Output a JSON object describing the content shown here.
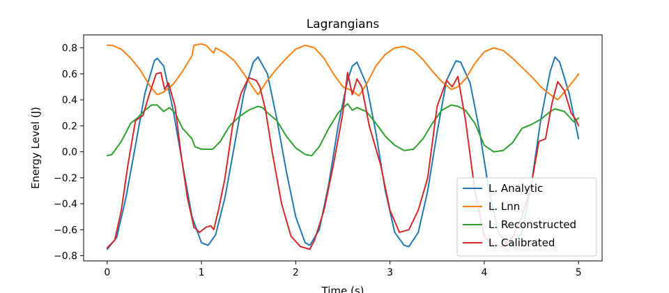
{
  "chart_data": {
    "type": "line",
    "title": "Lagrangians",
    "xlabel": "Time (s)",
    "ylabel": "Energy Level (J)",
    "xlim": [
      -0.25,
      5.25
    ],
    "ylim": [
      -0.84,
      0.9
    ],
    "xticks": [
      0,
      1,
      2,
      3,
      4,
      5
    ],
    "xtick_labels": [
      "0",
      "1",
      "2",
      "3",
      "4",
      "5"
    ],
    "yticks": [
      -0.8,
      -0.6,
      -0.4,
      -0.2,
      0.0,
      0.2,
      0.4,
      0.6,
      0.8
    ],
    "ytick_labels": [
      "−0.8",
      "−0.6",
      "−0.4",
      "−0.2",
      "0.0",
      "0.2",
      "0.4",
      "0.6",
      "0.8"
    ],
    "grid": false,
    "legend_position": "bottom-right",
    "series": [
      {
        "name": "L. Analytic",
        "color": "#1f77b4",
        "x": [
          0,
          0.1,
          0.2,
          0.3,
          0.4,
          0.5,
          0.53,
          0.6,
          0.7,
          0.8,
          0.9,
          1.0,
          1.07,
          1.15,
          1.25,
          1.35,
          1.45,
          1.55,
          1.6,
          1.7,
          1.8,
          1.9,
          2.0,
          2.1,
          2.15,
          2.25,
          2.35,
          2.45,
          2.55,
          2.6,
          2.65,
          2.75,
          2.85,
          2.95,
          3.05,
          3.15,
          3.2,
          3.3,
          3.4,
          3.5,
          3.6,
          3.7,
          3.75,
          3.85,
          3.95,
          4.05,
          4.15,
          4.25,
          4.3,
          4.4,
          4.5,
          4.6,
          4.7,
          4.75,
          4.8,
          4.9,
          5.0
        ],
        "y": [
          -0.75,
          -0.66,
          -0.35,
          0.05,
          0.45,
          0.7,
          0.72,
          0.66,
          0.32,
          -0.1,
          -0.5,
          -0.7,
          -0.72,
          -0.64,
          -0.35,
          0.05,
          0.45,
          0.69,
          0.73,
          0.6,
          0.25,
          -0.15,
          -0.5,
          -0.7,
          -0.72,
          -0.6,
          -0.25,
          0.2,
          0.55,
          0.66,
          0.69,
          0.52,
          0.15,
          -0.3,
          -0.62,
          -0.72,
          -0.73,
          -0.62,
          -0.3,
          0.15,
          0.55,
          0.7,
          0.69,
          0.53,
          0.16,
          -0.3,
          -0.62,
          -0.72,
          -0.73,
          -0.62,
          -0.25,
          0.25,
          0.62,
          0.73,
          0.69,
          0.45,
          0.1
        ]
      },
      {
        "name": "L. Lnn",
        "color": "#ff7f0e",
        "x": [
          0,
          0.05,
          0.15,
          0.25,
          0.35,
          0.45,
          0.53,
          0.6,
          0.7,
          0.8,
          0.9,
          0.92,
          1.0,
          1.05,
          1.1,
          1.13,
          1.15,
          1.25,
          1.35,
          1.45,
          1.55,
          1.6,
          1.7,
          1.8,
          1.9,
          2.0,
          2.1,
          2.2,
          2.3,
          2.4,
          2.5,
          2.6,
          2.67,
          2.75,
          2.85,
          2.95,
          3.05,
          3.15,
          3.25,
          3.35,
          3.45,
          3.55,
          3.65,
          3.72,
          3.8,
          3.9,
          4.0,
          4.1,
          4.2,
          4.3,
          4.4,
          4.5,
          4.6,
          4.7,
          4.78,
          4.85,
          4.95,
          5.0
        ],
        "y": [
          0.82,
          0.82,
          0.79,
          0.72,
          0.63,
          0.51,
          0.44,
          0.46,
          0.52,
          0.62,
          0.74,
          0.82,
          0.83,
          0.82,
          0.78,
          0.76,
          0.8,
          0.76,
          0.7,
          0.6,
          0.49,
          0.44,
          0.55,
          0.64,
          0.72,
          0.79,
          0.82,
          0.8,
          0.72,
          0.6,
          0.5,
          0.47,
          0.43,
          0.52,
          0.66,
          0.75,
          0.8,
          0.81,
          0.78,
          0.71,
          0.62,
          0.54,
          0.48,
          0.5,
          0.56,
          0.68,
          0.77,
          0.8,
          0.78,
          0.72,
          0.65,
          0.58,
          0.5,
          0.44,
          0.4,
          0.46,
          0.55,
          0.6
        ]
      },
      {
        "name": "L. Reconstructed",
        "color": "#2ca02c",
        "x": [
          0,
          0.05,
          0.15,
          0.25,
          0.32,
          0.4,
          0.47,
          0.53,
          0.6,
          0.66,
          0.72,
          0.8,
          0.9,
          0.93,
          1.0,
          1.05,
          1.12,
          1.2,
          1.3,
          1.4,
          1.5,
          1.6,
          1.65,
          1.7,
          1.8,
          1.9,
          2.0,
          2.1,
          2.17,
          2.25,
          2.35,
          2.45,
          2.55,
          2.6,
          2.65,
          2.75,
          2.85,
          2.95,
          3.05,
          3.15,
          3.25,
          3.35,
          3.45,
          3.55,
          3.65,
          3.72,
          3.8,
          3.9,
          4.0,
          4.1,
          4.2,
          4.3,
          4.4,
          4.5,
          4.6,
          4.7,
          4.75,
          4.85,
          4.95,
          5.0
        ],
        "y": [
          -0.03,
          -0.02,
          0.08,
          0.22,
          0.26,
          0.32,
          0.36,
          0.36,
          0.31,
          0.34,
          0.3,
          0.18,
          0.1,
          0.04,
          0.02,
          0.02,
          0.02,
          0.08,
          0.2,
          0.27,
          0.32,
          0.35,
          0.34,
          0.3,
          0.24,
          0.12,
          0.03,
          -0.02,
          -0.03,
          0.04,
          0.18,
          0.3,
          0.37,
          0.32,
          0.34,
          0.31,
          0.22,
          0.12,
          0.05,
          0.01,
          0.02,
          0.1,
          0.22,
          0.32,
          0.36,
          0.35,
          0.32,
          0.22,
          0.05,
          0.0,
          0.01,
          0.07,
          0.18,
          0.21,
          0.25,
          0.31,
          0.33,
          0.31,
          0.23,
          0.26
        ]
      },
      {
        "name": "L. Calibrated",
        "color": "#d62728",
        "x": [
          0,
          0.08,
          0.15,
          0.22,
          0.3,
          0.38,
          0.45,
          0.52,
          0.57,
          0.61,
          0.65,
          0.72,
          0.78,
          0.85,
          0.92,
          0.98,
          1.05,
          1.1,
          1.13,
          1.18,
          1.25,
          1.33,
          1.42,
          1.5,
          1.58,
          1.62,
          1.68,
          1.75,
          1.85,
          1.95,
          2.05,
          2.15,
          2.2,
          2.3,
          2.4,
          2.5,
          2.55,
          2.6,
          2.65,
          2.7,
          2.78,
          2.9,
          3.0,
          3.1,
          3.2,
          3.3,
          3.4,
          3.5,
          3.6,
          3.66,
          3.72,
          3.8,
          3.9,
          4.0,
          4.1,
          4.2,
          4.3,
          4.4,
          4.5,
          4.58,
          4.65,
          4.72,
          4.78,
          4.85,
          4.92,
          4.97,
          5.0
        ],
        "y": [
          -0.74,
          -0.68,
          -0.45,
          -0.1,
          0.24,
          0.28,
          0.45,
          0.6,
          0.61,
          0.48,
          0.53,
          0.35,
          0.0,
          -0.35,
          -0.58,
          -0.62,
          -0.58,
          -0.57,
          -0.6,
          -0.45,
          -0.2,
          0.2,
          0.45,
          0.57,
          0.55,
          0.5,
          0.32,
          0.0,
          -0.4,
          -0.65,
          -0.73,
          -0.75,
          -0.68,
          -0.45,
          -0.1,
          0.3,
          0.61,
          0.44,
          0.56,
          0.5,
          0.2,
          -0.1,
          -0.45,
          -0.62,
          -0.6,
          -0.45,
          -0.2,
          0.35,
          0.55,
          0.5,
          0.58,
          0.25,
          -0.3,
          -0.65,
          -0.72,
          -0.73,
          -0.66,
          -0.5,
          -0.25,
          0.08,
          0.1,
          0.38,
          0.54,
          0.47,
          0.3,
          0.25,
          0.2
        ]
      }
    ]
  }
}
